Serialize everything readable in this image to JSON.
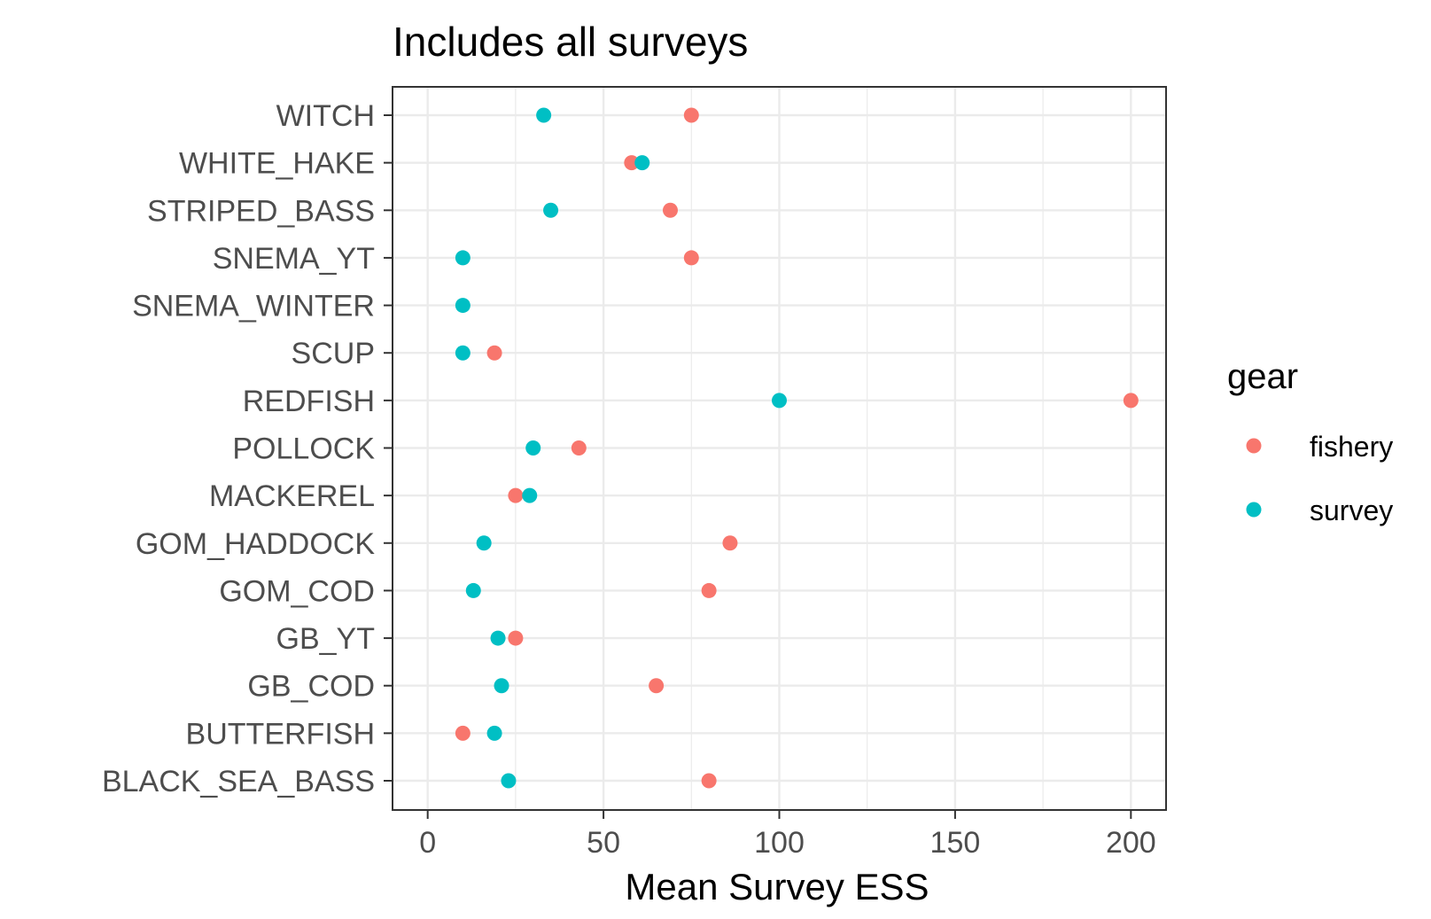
{
  "chart_data": {
    "type": "scatter",
    "title": "Includes all surveys",
    "xlabel": "Mean Survey ESS",
    "ylabel": "",
    "xlim": [
      -10,
      210
    ],
    "x_ticks": [
      0,
      50,
      100,
      150,
      200
    ],
    "x_tick_labels": [
      "0",
      "50",
      "100",
      "150",
      "200"
    ],
    "grid": true,
    "categories": [
      "WITCH",
      "WHITE_HAKE",
      "STRIPED_BASS",
      "SNEMA_YT",
      "SNEMA_WINTER",
      "SCUP",
      "REDFISH",
      "POLLOCK",
      "MACKEREL",
      "GOM_HADDOCK",
      "GOM_COD",
      "GB_YT",
      "GB_COD",
      "BUTTERFISH",
      "BLACK_SEA_BASS"
    ],
    "legend": {
      "title": "gear",
      "placement": "right"
    },
    "series": [
      {
        "name": "fishery",
        "color": "#F8766D",
        "values": [
          75,
          58,
          69,
          75,
          null,
          19,
          200,
          43,
          25,
          86,
          80,
          25,
          65,
          10,
          80
        ]
      },
      {
        "name": "survey",
        "color": "#00BFC4",
        "values": [
          33,
          61,
          35,
          10,
          10,
          10,
          100,
          30,
          29,
          16,
          13,
          20,
          21,
          19,
          23
        ]
      }
    ]
  }
}
